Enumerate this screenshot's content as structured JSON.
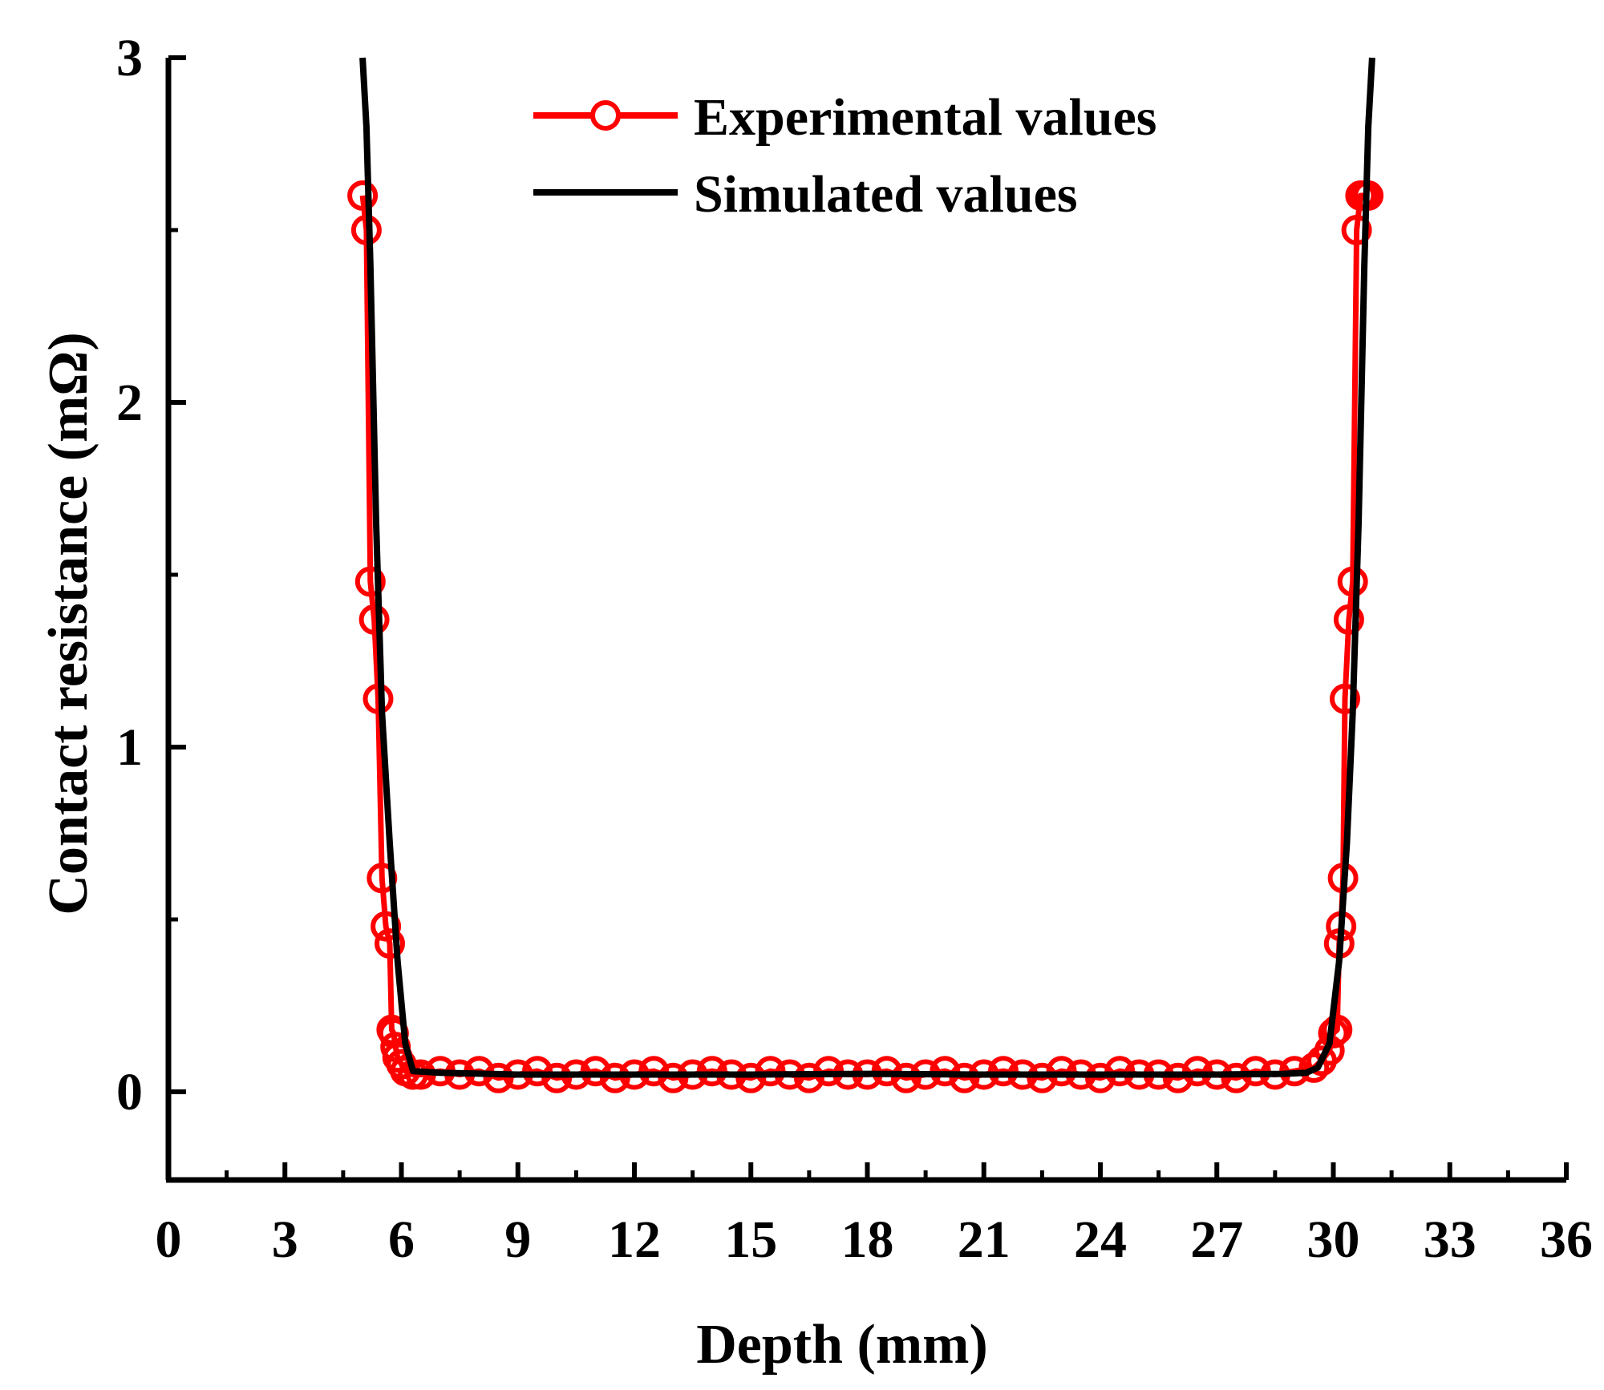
{
  "chart_data": {
    "type": "line",
    "title": "",
    "xlabel": "Depth (mm)",
    "ylabel": "Contact resistance (mΩ)",
    "xlim": [
      0,
      36
    ],
    "ylim": [
      -0.25,
      3
    ],
    "xticks": [
      0,
      3,
      6,
      9,
      12,
      15,
      18,
      21,
      24,
      27,
      30,
      33,
      36
    ],
    "xtick_labels": [
      "0",
      "3",
      "6",
      "9",
      "12",
      "15",
      "18",
      "21",
      "24",
      "27",
      "30",
      "33",
      "36"
    ],
    "yticks": [
      0,
      1,
      2,
      3
    ],
    "ytick_labels": [
      "0",
      "1",
      "2",
      "3"
    ],
    "grid": false,
    "legend_position": "top-center",
    "series": [
      {
        "name": "Experimental values",
        "color": "#ff0000",
        "marker": "open-circle",
        "x": [
          5.0,
          5.1,
          5.2,
          5.3,
          5.4,
          5.5,
          5.6,
          5.7,
          5.75,
          5.8,
          5.85,
          5.9,
          6.0,
          6.1,
          6.3,
          6.5,
          7.0,
          7.5,
          8.0,
          8.5,
          9.0,
          9.5,
          10.0,
          10.5,
          11.0,
          11.5,
          12.0,
          12.5,
          13.0,
          13.5,
          14.0,
          14.5,
          15.0,
          15.5,
          16.0,
          16.5,
          17.0,
          17.5,
          18.0,
          18.5,
          19.0,
          19.5,
          20.0,
          20.5,
          21.0,
          21.5,
          22.0,
          22.5,
          23.0,
          23.5,
          24.0,
          24.5,
          25.0,
          25.5,
          26.0,
          26.5,
          27.0,
          27.5,
          28.0,
          28.5,
          29.0,
          29.5,
          29.7,
          29.9,
          30.0,
          30.1,
          30.15,
          30.2,
          30.25,
          30.3,
          30.4,
          30.5,
          30.6,
          30.7,
          30.8,
          30.9
        ],
        "y": [
          2.6,
          2.5,
          1.48,
          1.37,
          1.14,
          0.62,
          0.48,
          0.43,
          0.18,
          0.17,
          0.13,
          0.1,
          0.08,
          0.06,
          0.05,
          0.05,
          0.06,
          0.05,
          0.06,
          0.04,
          0.05,
          0.06,
          0.04,
          0.05,
          0.06,
          0.04,
          0.05,
          0.06,
          0.04,
          0.05,
          0.06,
          0.05,
          0.04,
          0.06,
          0.05,
          0.04,
          0.06,
          0.05,
          0.05,
          0.06,
          0.04,
          0.05,
          0.06,
          0.04,
          0.05,
          0.06,
          0.05,
          0.04,
          0.06,
          0.05,
          0.04,
          0.06,
          0.05,
          0.05,
          0.04,
          0.06,
          0.05,
          0.04,
          0.06,
          0.05,
          0.06,
          0.07,
          0.09,
          0.12,
          0.17,
          0.18,
          0.43,
          0.48,
          0.62,
          1.14,
          1.37,
          1.48,
          2.5,
          2.6,
          2.6,
          2.6
        ]
      },
      {
        "name": "Simulated values",
        "color": "#000000",
        "marker": "none",
        "x": [
          5.0,
          5.1,
          5.2,
          5.35,
          5.5,
          5.7,
          5.9,
          6.1,
          6.3,
          7.0,
          9.0,
          12.0,
          15.0,
          18.0,
          21.0,
          24.0,
          27.0,
          28.7,
          29.3,
          29.6,
          29.9,
          30.15,
          30.35,
          30.5,
          30.65,
          30.8,
          30.9,
          31.0
        ],
        "y": [
          3.0,
          2.8,
          2.4,
          1.65,
          1.1,
          0.72,
          0.38,
          0.14,
          0.06,
          0.055,
          0.05,
          0.05,
          0.05,
          0.052,
          0.05,
          0.05,
          0.05,
          0.052,
          0.055,
          0.07,
          0.14,
          0.38,
          0.72,
          1.1,
          1.65,
          2.4,
          2.8,
          3.0
        ]
      }
    ]
  }
}
